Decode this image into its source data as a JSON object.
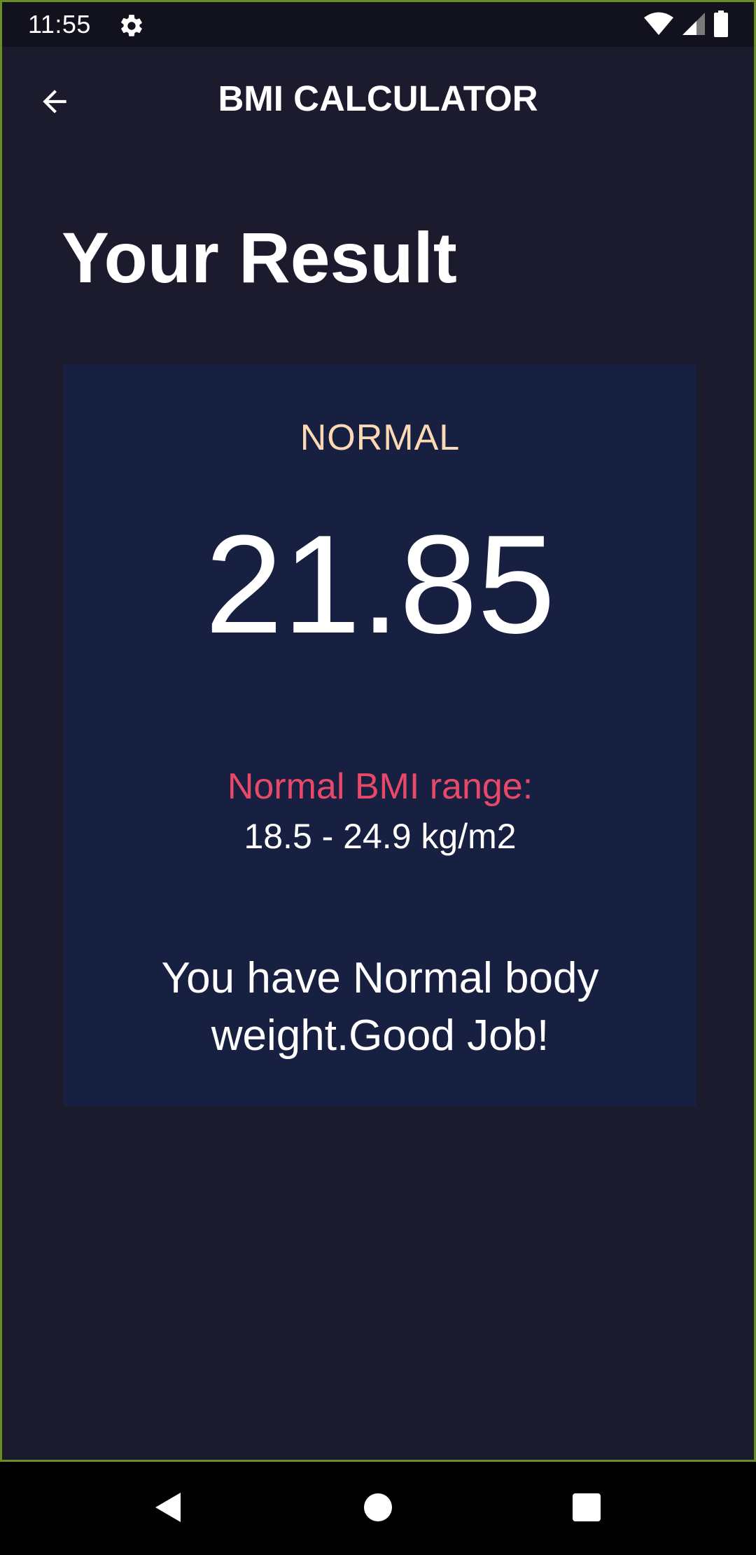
{
  "status_bar": {
    "time": "11:55",
    "icons": [
      "gear-icon",
      "wifi-icon",
      "signal-icon",
      "battery-icon"
    ]
  },
  "app_bar": {
    "title": "BMI CALCULATOR",
    "back_icon": "arrow-back-icon"
  },
  "page": {
    "title": "Your Result"
  },
  "result": {
    "status": "NORMAL",
    "bmi": "21.85",
    "range_label": "Normal BMI range:",
    "range_value": "18.5 - 24.9 kg/m2",
    "interpretation": "You have Normal body weight.Good Job!"
  },
  "nav_bar": {
    "icons": [
      "nav-back-icon",
      "nav-home-icon",
      "nav-recents-icon"
    ]
  },
  "colors": {
    "background": "#1c1b2e",
    "card": "#182041",
    "status_text": "#fcd9b5",
    "range_label": "#e84968",
    "text": "#ffffff"
  }
}
